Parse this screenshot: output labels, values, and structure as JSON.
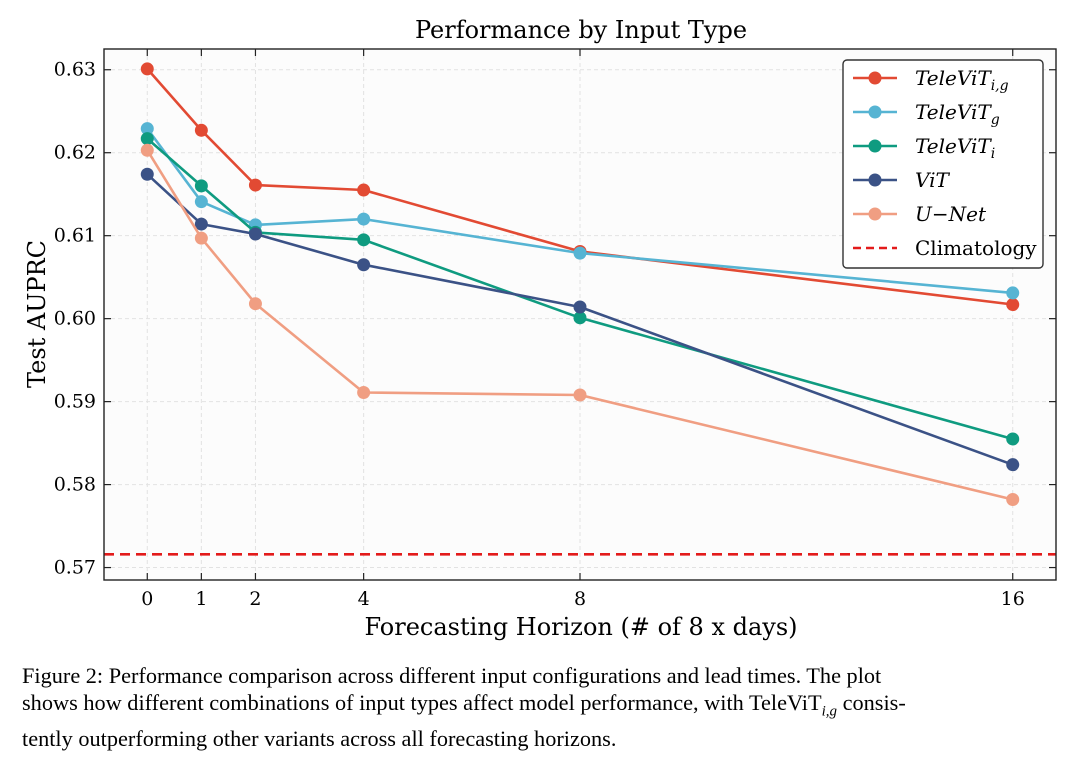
{
  "chart_data": {
    "type": "line",
    "title": "Performance by Input Type",
    "xlabel": "Forecasting Horizon (# of 8 x days)",
    "ylabel": "Test AUPRC",
    "x": [
      0,
      1,
      2,
      4,
      8,
      16
    ],
    "xticks": [
      "0",
      "1",
      "2",
      "4",
      "8",
      "16"
    ],
    "yticks": [
      "0.57",
      "0.58",
      "0.59",
      "0.60",
      "0.61",
      "0.62",
      "0.63"
    ],
    "xlim": [
      -0.8,
      16.8
    ],
    "ylim": [
      0.5685,
      0.6325
    ],
    "grid": true,
    "legend_position": "top-right",
    "series": [
      {
        "name": "TeleViT_{i,g}",
        "base": "TeleViT",
        "sub": "i,g",
        "color": "#e24a33",
        "values": [
          0.6301,
          0.6227,
          0.6161,
          0.6155,
          0.6081,
          0.6017
        ]
      },
      {
        "name": "TeleViT_{g}",
        "base": "TeleViT",
        "sub": "g",
        "color": "#56b4d3",
        "values": [
          0.6229,
          0.6141,
          0.6113,
          0.612,
          0.6079,
          0.6031
        ]
      },
      {
        "name": "TeleViT_{i}",
        "base": "TeleViT",
        "sub": "i",
        "color": "#0f9b80",
        "values": [
          0.6217,
          0.616,
          0.6104,
          0.6095,
          0.6001,
          0.5855
        ]
      },
      {
        "name": "ViT",
        "base": "ViT",
        "sub": "",
        "color": "#3b5286",
        "values": [
          0.6174,
          0.6114,
          0.6102,
          0.6065,
          0.6014,
          0.5824
        ]
      },
      {
        "name": "U-Net",
        "base": "U−Net",
        "sub": "",
        "color": "#f09e82",
        "values": [
          0.6203,
          0.6097,
          0.6018,
          0.5911,
          0.5908,
          0.5782
        ]
      }
    ],
    "baseline": {
      "name": "Climatology",
      "value": 0.5716,
      "color": "#e31b1b",
      "style": "dashed"
    }
  },
  "caption": {
    "lines": [
      "Figure 2: Performance comparison across different input configurations and lead times. The plot",
      "shows how different combinations of input types affect model performance, with TeleViT",
      "tently outperforming other variants across all forecasting horizons."
    ],
    "line2_sub": "i,g",
    "line2_tail": " consis-"
  }
}
